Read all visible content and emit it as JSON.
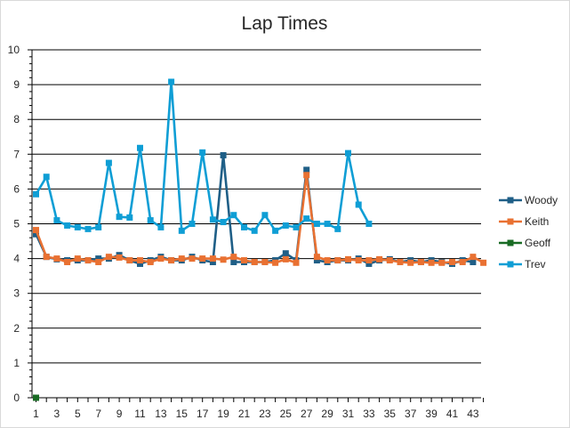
{
  "chart_data": {
    "type": "line",
    "title": "Lap Times",
    "xlabel": "",
    "ylabel": "",
    "xlim": [
      1,
      44
    ],
    "ylim": [
      0,
      10
    ],
    "y_ticks": [
      0,
      1,
      2,
      3,
      4,
      5,
      6,
      7,
      8,
      9,
      10
    ],
    "x_ticks": [
      1,
      3,
      5,
      7,
      9,
      11,
      13,
      15,
      17,
      19,
      21,
      23,
      25,
      27,
      29,
      31,
      33,
      35,
      37,
      39,
      41,
      43
    ],
    "grid": "horizontal",
    "legend_position": "right",
    "series": [
      {
        "name": "Woody",
        "color": "#1f5f87",
        "x": [
          1,
          2,
          3,
          4,
          5,
          6,
          7,
          8,
          9,
          10,
          11,
          12,
          13,
          14,
          15,
          16,
          17,
          18,
          19,
          20,
          21,
          22,
          23,
          24,
          25,
          26,
          27,
          28,
          29,
          30,
          31,
          32,
          33,
          34,
          35,
          36,
          37,
          38,
          39,
          40,
          41,
          42,
          43
        ],
        "values": [
          4.7,
          4.05,
          3.98,
          3.95,
          3.95,
          3.95,
          4.0,
          4.0,
          4.1,
          3.95,
          3.85,
          3.95,
          4.05,
          3.95,
          3.95,
          4.05,
          3.95,
          3.9,
          6.97,
          3.9,
          3.9,
          3.9,
          3.9,
          3.95,
          4.15,
          3.95,
          6.55,
          3.95,
          3.9,
          3.95,
          3.95,
          4.0,
          3.85,
          3.95,
          3.98,
          3.9,
          3.95,
          3.9,
          3.95,
          3.9,
          3.85,
          3.95,
          3.9
        ]
      },
      {
        "name": "Keith",
        "color": "#e97132",
        "x": [
          1,
          2,
          3,
          4,
          5,
          6,
          7,
          8,
          9,
          10,
          11,
          12,
          13,
          14,
          15,
          16,
          17,
          18,
          19,
          20,
          21,
          22,
          23,
          24,
          25,
          26,
          27,
          28,
          29,
          30,
          31,
          32,
          33,
          34,
          35,
          36,
          37,
          38,
          39,
          40,
          41,
          42,
          43,
          44
        ],
        "values": [
          4.82,
          4.05,
          4.0,
          3.9,
          4.0,
          3.95,
          3.9,
          4.05,
          4.03,
          3.95,
          3.95,
          3.9,
          4.0,
          3.95,
          4.0,
          4.0,
          4.0,
          4.0,
          3.97,
          4.05,
          3.95,
          3.9,
          3.9,
          3.88,
          3.98,
          3.88,
          6.4,
          4.05,
          3.95,
          3.95,
          3.98,
          3.95,
          3.95,
          3.98,
          3.95,
          3.9,
          3.88,
          3.9,
          3.88,
          3.88,
          3.9,
          3.9,
          4.05,
          3.88
        ]
      },
      {
        "name": "Geoff",
        "color": "#196b24",
        "x": [
          1
        ],
        "values": [
          0
        ]
      },
      {
        "name": "Trev",
        "color": "#0f9ed5",
        "x": [
          1,
          2,
          3,
          4,
          5,
          6,
          7,
          8,
          9,
          10,
          11,
          12,
          13,
          14,
          15,
          16,
          17,
          18,
          19,
          20,
          21,
          22,
          23,
          24,
          25,
          26,
          27,
          28,
          29,
          30,
          31,
          32,
          33
        ],
        "values": [
          5.85,
          6.35,
          5.1,
          4.95,
          4.9,
          4.85,
          4.9,
          6.75,
          5.2,
          5.18,
          7.18,
          5.1,
          4.9,
          9.08,
          4.8,
          5.0,
          7.05,
          5.12,
          5.05,
          5.25,
          4.9,
          4.8,
          5.25,
          4.8,
          4.95,
          4.9,
          5.15,
          5.0,
          5.0,
          4.85,
          7.03,
          5.55,
          5.0
        ]
      }
    ]
  }
}
